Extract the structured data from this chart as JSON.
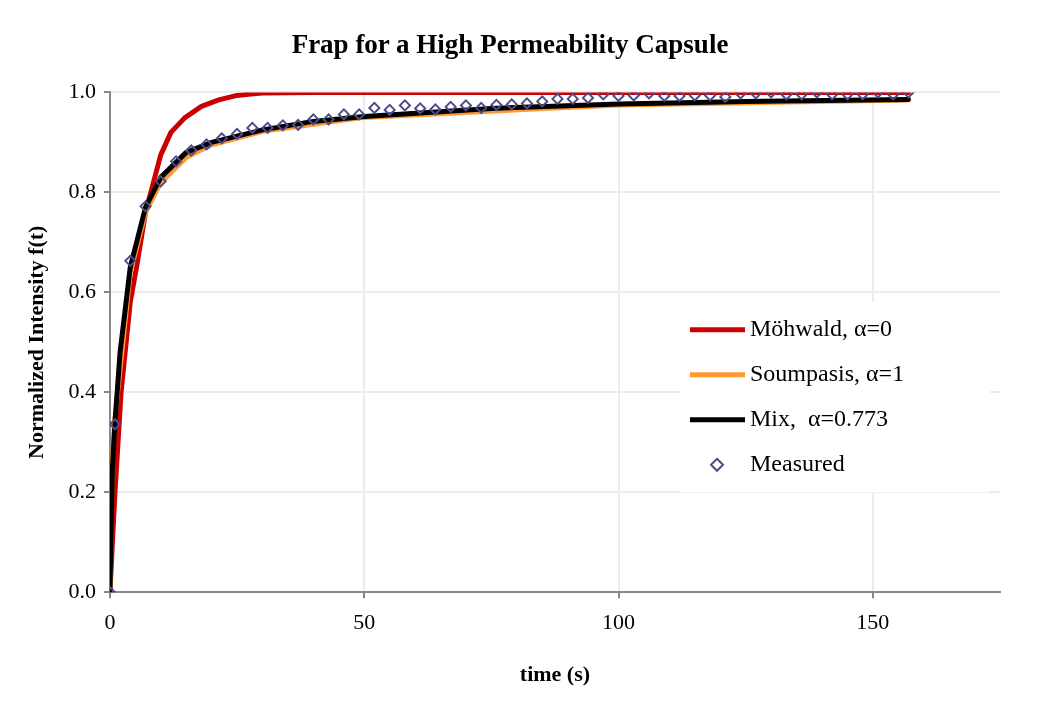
{
  "chart_data": {
    "type": "line",
    "title": "Frap for a High Permeability Capsule",
    "xlabel": "time (s)",
    "ylabel": "Normalized Intensity f(t)",
    "xlim": [
      0,
      175
    ],
    "xticks": [
      0,
      50,
      100,
      150
    ],
    "ylim": [
      0,
      1
    ],
    "yticks": [
      {
        "value": 0,
        "label": "0.0"
      },
      {
        "value": 0.2,
        "label": "0.2"
      },
      {
        "value": 0.4,
        "label": "0.4"
      },
      {
        "value": 0.6,
        "label": "0.6"
      },
      {
        "value": 0.8,
        "label": "0.8"
      },
      {
        "value": 1,
        "label": "1.0"
      }
    ],
    "grid": true,
    "legend": "right",
    "series": [
      {
        "name": "Möhwald, α=0",
        "type": "line",
        "color": "#cc0000",
        "marker": "none",
        "x": [
          0,
          1,
          2.2,
          4,
          5.3,
          7,
          10,
          12,
          14.7,
          18,
          21.4,
          25,
          30,
          40,
          157
        ],
        "values": [
          0,
          0.2,
          0.4,
          0.58,
          0.654,
          0.76,
          0.875,
          0.92,
          0.949,
          0.972,
          0.985,
          0.994,
          0.999,
          1,
          1
        ]
      },
      {
        "name": "Soumpasis, α=1",
        "type": "line",
        "color": "#ff9933",
        "marker": "none",
        "x": [
          0,
          0.5,
          1,
          4,
          7,
          10,
          15,
          20,
          30,
          50,
          100,
          157
        ],
        "values": [
          0,
          0.27,
          0.35,
          0.64,
          0.76,
          0.82,
          0.87,
          0.895,
          0.922,
          0.95,
          0.975,
          0.985
        ]
      },
      {
        "name": "Mix,  α=0.773",
        "type": "line",
        "color": "#000000",
        "marker": "none",
        "x": [
          0,
          0.5,
          1,
          2,
          4,
          7,
          10,
          15,
          20,
          30,
          40,
          50,
          75,
          100,
          125,
          157
        ],
        "values": [
          0,
          0.25,
          0.34,
          0.48,
          0.65,
          0.77,
          0.83,
          0.88,
          0.9,
          0.925,
          0.942,
          0.952,
          0.968,
          0.977,
          0.982,
          0.986
        ]
      },
      {
        "name": "Measured",
        "type": "scatter",
        "color": "#4c4c8c",
        "marker": "diamond",
        "x": [
          0,
          1,
          4,
          7,
          10,
          13,
          16,
          19,
          22,
          25,
          28,
          31,
          34,
          37,
          40,
          43,
          46,
          49,
          52,
          55,
          58,
          61,
          64,
          67,
          70,
          73,
          76,
          79,
          82,
          85,
          88,
          91,
          94,
          97,
          100,
          103,
          106,
          109,
          112,
          115,
          118,
          121,
          124,
          127,
          130,
          133,
          136,
          139,
          142,
          145,
          148,
          151,
          154,
          157
        ],
        "values": [
          0,
          0.336,
          0.663,
          0.772,
          0.822,
          0.862,
          0.884,
          0.896,
          0.908,
          0.917,
          0.929,
          0.929,
          0.934,
          0.935,
          0.946,
          0.946,
          0.956,
          0.956,
          0.969,
          0.965,
          0.974,
          0.968,
          0.966,
          0.971,
          0.974,
          0.969,
          0.975,
          0.976,
          0.978,
          0.982,
          0.987,
          0.987,
          0.989,
          0.996,
          0.993,
          0.994,
          0.998,
          0.993,
          0.993,
          0.994,
          0.994,
          0.991,
          0.998,
          0.998,
          1,
          0.996,
          0.996,
          1,
          0.996,
          0.996,
          0.996,
          1,
          0.996,
          1
        ]
      }
    ]
  }
}
